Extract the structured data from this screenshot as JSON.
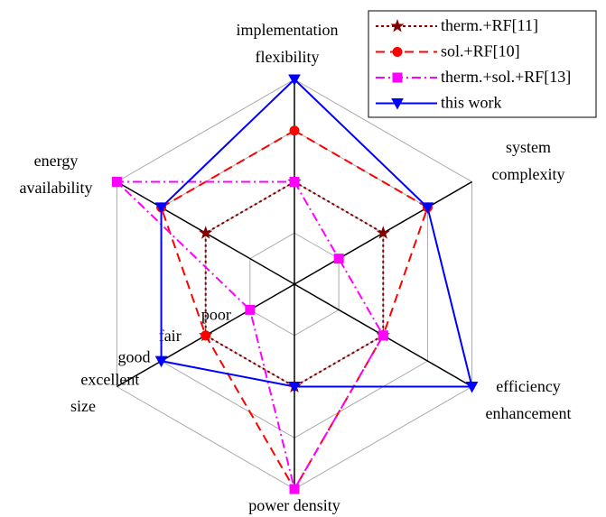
{
  "chart_data": {
    "type": "radar",
    "axes": [
      [
        "implementation",
        "flexibility"
      ],
      [
        "system",
        "complexity"
      ],
      [
        "efficiency",
        "enhancement"
      ],
      [
        "power density"
      ],
      [
        "size"
      ],
      [
        "energy",
        "availability"
      ]
    ],
    "levels": [
      "poor",
      "fair",
      "good",
      "excellent"
    ],
    "rlim": [
      0,
      4
    ],
    "rticks": [
      1,
      2,
      3,
      4
    ],
    "grid": true,
    "legend": "upper right",
    "series": [
      {
        "name": "therm.+RF[11]",
        "color": "#800000",
        "marker": "star",
        "dash": "dotted",
        "values": [
          2,
          2,
          2,
          2,
          2,
          2
        ]
      },
      {
        "name": "sol.+RF[10]",
        "color": "#ff0000",
        "marker": "circle",
        "dash": "dashed",
        "values": [
          3,
          3,
          2,
          4,
          2,
          3
        ]
      },
      {
        "name": "therm.+sol.+RF[13]",
        "color": "#ff00ff",
        "marker": "square",
        "dash": "dashdot",
        "values": [
          2,
          1,
          2,
          4,
          1,
          4
        ]
      },
      {
        "name": "this work",
        "color": "#0000ff",
        "marker": "triangle-down",
        "dash": "solid",
        "values": [
          4,
          3,
          4,
          2,
          3,
          3
        ]
      }
    ]
  }
}
